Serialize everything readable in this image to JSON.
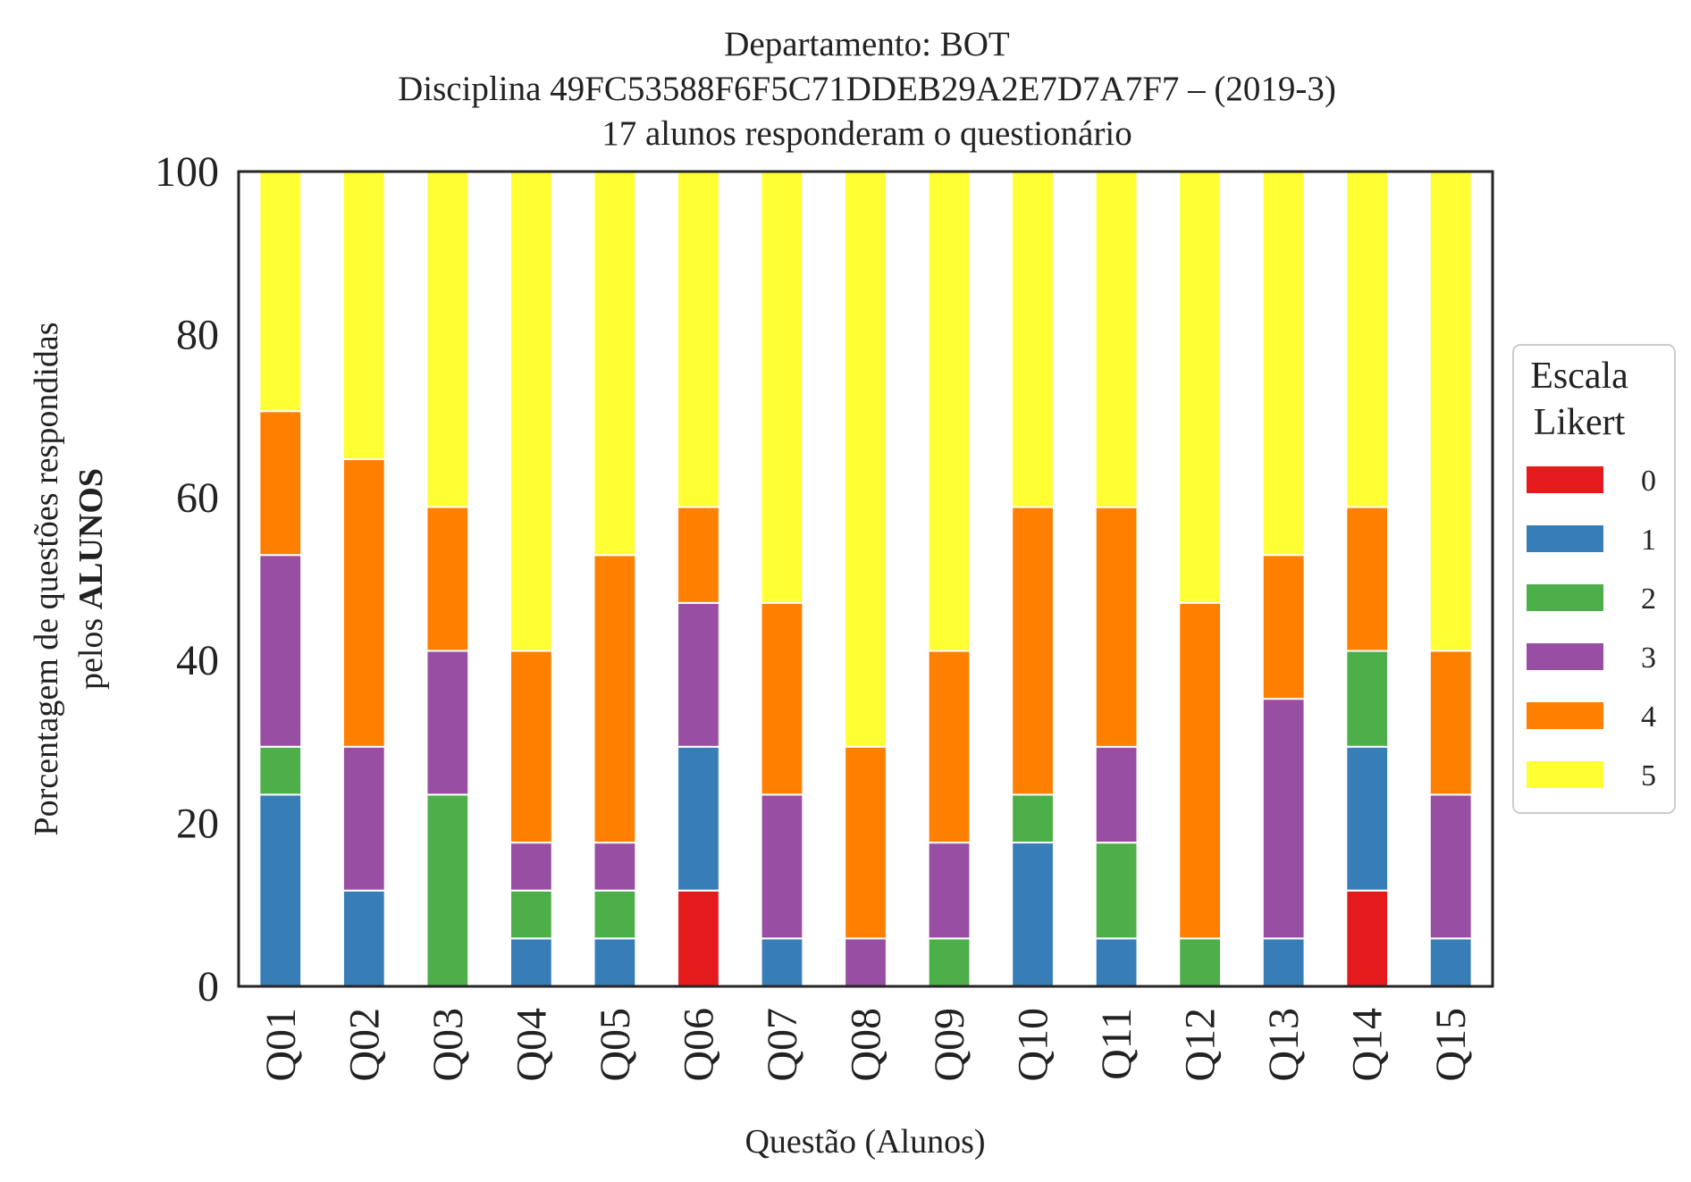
{
  "chart_data": {
    "type": "bar",
    "stacked": true,
    "title_lines": [
      "Departamento: BOT",
      "Disciplina 49FC53588F6F5C71DDEB29A2E7D7A7F7 – (2019-3)",
      "17 alunos responderam o questionário"
    ],
    "xlabel": "Questão (Alunos)",
    "ylabel_line1": "Porcentagem de questões respondidas",
    "ylabel_line2_prefix": "pelos ",
    "ylabel_line2_bold": "ALUNOS",
    "ylim": [
      0,
      100
    ],
    "yticks": [
      "0",
      "20",
      "40",
      "60",
      "80",
      "100"
    ],
    "grid": false,
    "legend": {
      "title_lines": [
        "Escala",
        "Likert"
      ],
      "placement": "center-right-outside"
    },
    "categories": [
      "Q01",
      "Q02",
      "Q03",
      "Q04",
      "Q05",
      "Q06",
      "Q07",
      "Q08",
      "Q09",
      "Q10",
      "Q11",
      "Q12",
      "Q13",
      "Q14",
      "Q15"
    ],
    "series": [
      {
        "name": "0",
        "color": "#e41a1c",
        "values": [
          0,
          0,
          0,
          0,
          0,
          11.76,
          0,
          0,
          0,
          0,
          0,
          0,
          0,
          11.76,
          0
        ]
      },
      {
        "name": "1",
        "color": "#377eb8",
        "values": [
          23.53,
          11.76,
          0,
          5.88,
          5.88,
          17.65,
          5.88,
          0,
          0,
          17.65,
          5.88,
          0,
          5.88,
          17.65,
          5.88
        ]
      },
      {
        "name": "2",
        "color": "#4daf4a",
        "values": [
          5.88,
          0,
          23.53,
          5.88,
          5.88,
          0,
          0,
          0,
          5.88,
          5.88,
          11.76,
          5.88,
          0,
          11.76,
          0
        ]
      },
      {
        "name": "3",
        "color": "#984ea3",
        "values": [
          23.53,
          17.65,
          17.65,
          5.88,
          5.88,
          17.65,
          17.65,
          5.88,
          11.76,
          0,
          11.76,
          0,
          29.41,
          0,
          17.65
        ]
      },
      {
        "name": "4",
        "color": "#ff7f00",
        "values": [
          17.65,
          35.29,
          17.65,
          23.53,
          35.29,
          11.76,
          23.53,
          23.53,
          23.53,
          35.29,
          29.41,
          41.18,
          17.65,
          17.65,
          17.65
        ]
      },
      {
        "name": "5",
        "color": "#ffff33",
        "values": [
          29.41,
          35.29,
          41.18,
          58.82,
          47.06,
          41.18,
          52.94,
          70.59,
          58.82,
          41.18,
          41.18,
          52.94,
          47.06,
          41.18,
          58.82
        ]
      }
    ]
  }
}
